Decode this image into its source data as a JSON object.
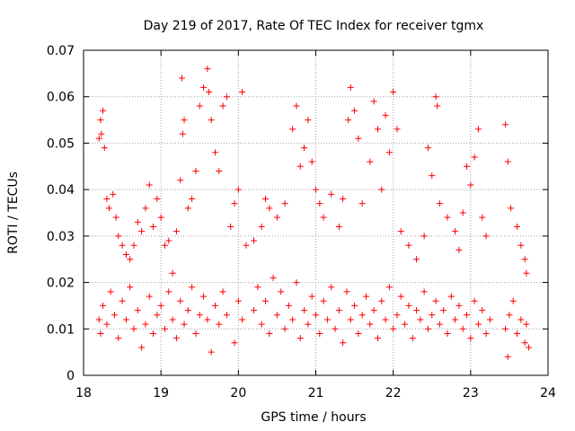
{
  "chart_data": {
    "type": "scatter",
    "title": "Day 219 of 2017, Rate Of TEC Index for receiver tgmx",
    "xlabel": "GPS time / hours",
    "ylabel": "ROTI / TECUs",
    "xlim": [
      18,
      24
    ],
    "ylim": [
      0,
      0.07
    ],
    "x_ticks": [
      "18",
      "19",
      "20",
      "21",
      "22",
      "23",
      "24"
    ],
    "y_ticks": [
      "0",
      "0.01",
      "0.02",
      "0.03",
      "0.04",
      "0.05",
      "0.06",
      "0.07"
    ],
    "grid": true,
    "marker": "+",
    "series_color": "#ff0000",
    "points": [
      [
        18.2,
        0.051
      ],
      [
        18.22,
        0.055
      ],
      [
        18.25,
        0.057
      ],
      [
        18.23,
        0.052
      ],
      [
        18.27,
        0.049
      ],
      [
        18.3,
        0.038
      ],
      [
        18.33,
        0.036
      ],
      [
        18.38,
        0.039
      ],
      [
        18.42,
        0.034
      ],
      [
        18.45,
        0.03
      ],
      [
        18.5,
        0.028
      ],
      [
        18.55,
        0.026
      ],
      [
        18.6,
        0.025
      ],
      [
        18.65,
        0.028
      ],
      [
        18.7,
        0.033
      ],
      [
        18.75,
        0.031
      ],
      [
        18.8,
        0.036
      ],
      [
        18.85,
        0.041
      ],
      [
        18.9,
        0.032
      ],
      [
        18.95,
        0.038
      ],
      [
        19.0,
        0.034
      ],
      [
        19.05,
        0.028
      ],
      [
        19.1,
        0.029
      ],
      [
        19.15,
        0.022
      ],
      [
        19.2,
        0.031
      ],
      [
        19.25,
        0.042
      ],
      [
        19.28,
        0.052
      ],
      [
        19.3,
        0.055
      ],
      [
        19.27,
        0.064
      ],
      [
        19.35,
        0.036
      ],
      [
        19.4,
        0.038
      ],
      [
        19.45,
        0.044
      ],
      [
        19.5,
        0.058
      ],
      [
        19.55,
        0.062
      ],
      [
        19.6,
        0.066
      ],
      [
        19.62,
        0.061
      ],
      [
        19.65,
        0.055
      ],
      [
        19.7,
        0.048
      ],
      [
        19.75,
        0.044
      ],
      [
        19.8,
        0.058
      ],
      [
        19.85,
        0.06
      ],
      [
        19.9,
        0.032
      ],
      [
        19.95,
        0.037
      ],
      [
        20.0,
        0.04
      ],
      [
        20.05,
        0.061
      ],
      [
        20.1,
        0.028
      ],
      [
        20.2,
        0.029
      ],
      [
        20.3,
        0.032
      ],
      [
        20.35,
        0.038
      ],
      [
        20.4,
        0.036
      ],
      [
        20.5,
        0.034
      ],
      [
        20.6,
        0.037
      ],
      [
        20.7,
        0.053
      ],
      [
        20.75,
        0.058
      ],
      [
        20.8,
        0.045
      ],
      [
        20.85,
        0.049
      ],
      [
        20.9,
        0.055
      ],
      [
        20.95,
        0.046
      ],
      [
        21.0,
        0.04
      ],
      [
        21.05,
        0.037
      ],
      [
        21.1,
        0.034
      ],
      [
        21.2,
        0.039
      ],
      [
        21.3,
        0.032
      ],
      [
        21.35,
        0.038
      ],
      [
        21.42,
        0.055
      ],
      [
        21.45,
        0.062
      ],
      [
        21.5,
        0.057
      ],
      [
        21.55,
        0.051
      ],
      [
        21.6,
        0.037
      ],
      [
        21.7,
        0.046
      ],
      [
        21.75,
        0.059
      ],
      [
        21.8,
        0.053
      ],
      [
        21.85,
        0.04
      ],
      [
        21.9,
        0.056
      ],
      [
        21.95,
        0.048
      ],
      [
        22.0,
        0.061
      ],
      [
        22.05,
        0.053
      ],
      [
        22.1,
        0.031
      ],
      [
        22.2,
        0.028
      ],
      [
        22.3,
        0.025
      ],
      [
        22.4,
        0.03
      ],
      [
        22.45,
        0.049
      ],
      [
        22.5,
        0.043
      ],
      [
        22.55,
        0.06
      ],
      [
        22.57,
        0.058
      ],
      [
        22.6,
        0.037
      ],
      [
        22.7,
        0.034
      ],
      [
        22.8,
        0.031
      ],
      [
        22.85,
        0.027
      ],
      [
        22.9,
        0.035
      ],
      [
        22.95,
        0.045
      ],
      [
        23.0,
        0.041
      ],
      [
        23.05,
        0.047
      ],
      [
        23.1,
        0.053
      ],
      [
        23.15,
        0.034
      ],
      [
        23.2,
        0.03
      ],
      [
        23.45,
        0.054
      ],
      [
        23.48,
        0.046
      ],
      [
        23.52,
        0.036
      ],
      [
        23.6,
        0.032
      ],
      [
        23.65,
        0.028
      ],
      [
        23.7,
        0.025
      ],
      [
        23.72,
        0.022
      ],
      [
        18.2,
        0.012
      ],
      [
        18.22,
        0.009
      ],
      [
        18.25,
        0.015
      ],
      [
        18.3,
        0.011
      ],
      [
        18.35,
        0.018
      ],
      [
        18.4,
        0.013
      ],
      [
        18.45,
        0.008
      ],
      [
        18.5,
        0.016
      ],
      [
        18.55,
        0.012
      ],
      [
        18.6,
        0.019
      ],
      [
        18.65,
        0.01
      ],
      [
        18.7,
        0.014
      ],
      [
        18.75,
        0.006
      ],
      [
        18.8,
        0.011
      ],
      [
        18.85,
        0.017
      ],
      [
        18.9,
        0.009
      ],
      [
        18.95,
        0.013
      ],
      [
        19.0,
        0.015
      ],
      [
        19.05,
        0.01
      ],
      [
        19.1,
        0.018
      ],
      [
        19.15,
        0.012
      ],
      [
        19.2,
        0.008
      ],
      [
        19.25,
        0.016
      ],
      [
        19.3,
        0.011
      ],
      [
        19.35,
        0.014
      ],
      [
        19.4,
        0.019
      ],
      [
        19.45,
        0.009
      ],
      [
        19.5,
        0.013
      ],
      [
        19.55,
        0.017
      ],
      [
        19.6,
        0.012
      ],
      [
        19.65,
        0.005
      ],
      [
        19.7,
        0.015
      ],
      [
        19.75,
        0.011
      ],
      [
        19.8,
        0.018
      ],
      [
        19.85,
        0.013
      ],
      [
        19.95,
        0.007
      ],
      [
        20.0,
        0.016
      ],
      [
        20.05,
        0.012
      ],
      [
        20.2,
        0.014
      ],
      [
        20.25,
        0.019
      ],
      [
        20.3,
        0.011
      ],
      [
        20.35,
        0.016
      ],
      [
        20.4,
        0.009
      ],
      [
        20.45,
        0.021
      ],
      [
        20.5,
        0.013
      ],
      [
        20.55,
        0.018
      ],
      [
        20.6,
        0.01
      ],
      [
        20.65,
        0.015
      ],
      [
        20.7,
        0.012
      ],
      [
        20.75,
        0.02
      ],
      [
        20.8,
        0.008
      ],
      [
        20.85,
        0.014
      ],
      [
        20.9,
        0.011
      ],
      [
        20.95,
        0.017
      ],
      [
        21.0,
        0.013
      ],
      [
        21.05,
        0.009
      ],
      [
        21.1,
        0.016
      ],
      [
        21.15,
        0.012
      ],
      [
        21.2,
        0.019
      ],
      [
        21.25,
        0.01
      ],
      [
        21.3,
        0.014
      ],
      [
        21.35,
        0.007
      ],
      [
        21.4,
        0.018
      ],
      [
        21.45,
        0.012
      ],
      [
        21.5,
        0.015
      ],
      [
        21.55,
        0.009
      ],
      [
        21.6,
        0.013
      ],
      [
        21.65,
        0.017
      ],
      [
        21.7,
        0.011
      ],
      [
        21.75,
        0.014
      ],
      [
        21.8,
        0.008
      ],
      [
        21.85,
        0.016
      ],
      [
        21.9,
        0.012
      ],
      [
        21.95,
        0.019
      ],
      [
        22.0,
        0.01
      ],
      [
        22.05,
        0.013
      ],
      [
        22.1,
        0.017
      ],
      [
        22.15,
        0.011
      ],
      [
        22.2,
        0.015
      ],
      [
        22.25,
        0.008
      ],
      [
        22.3,
        0.014
      ],
      [
        22.35,
        0.012
      ],
      [
        22.4,
        0.018
      ],
      [
        22.45,
        0.01
      ],
      [
        22.5,
        0.013
      ],
      [
        22.55,
        0.016
      ],
      [
        22.6,
        0.011
      ],
      [
        22.65,
        0.014
      ],
      [
        22.7,
        0.009
      ],
      [
        22.75,
        0.017
      ],
      [
        22.8,
        0.012
      ],
      [
        22.85,
        0.015
      ],
      [
        22.9,
        0.01
      ],
      [
        22.95,
        0.013
      ],
      [
        23.0,
        0.008
      ],
      [
        23.05,
        0.016
      ],
      [
        23.1,
        0.011
      ],
      [
        23.15,
        0.014
      ],
      [
        23.2,
        0.009
      ],
      [
        23.25,
        0.012
      ],
      [
        23.45,
        0.01
      ],
      [
        23.48,
        0.004
      ],
      [
        23.5,
        0.013
      ],
      [
        23.55,
        0.016
      ],
      [
        23.6,
        0.009
      ],
      [
        23.65,
        0.012
      ],
      [
        23.7,
        0.007
      ],
      [
        23.72,
        0.011
      ],
      [
        23.75,
        0.006
      ]
    ]
  }
}
